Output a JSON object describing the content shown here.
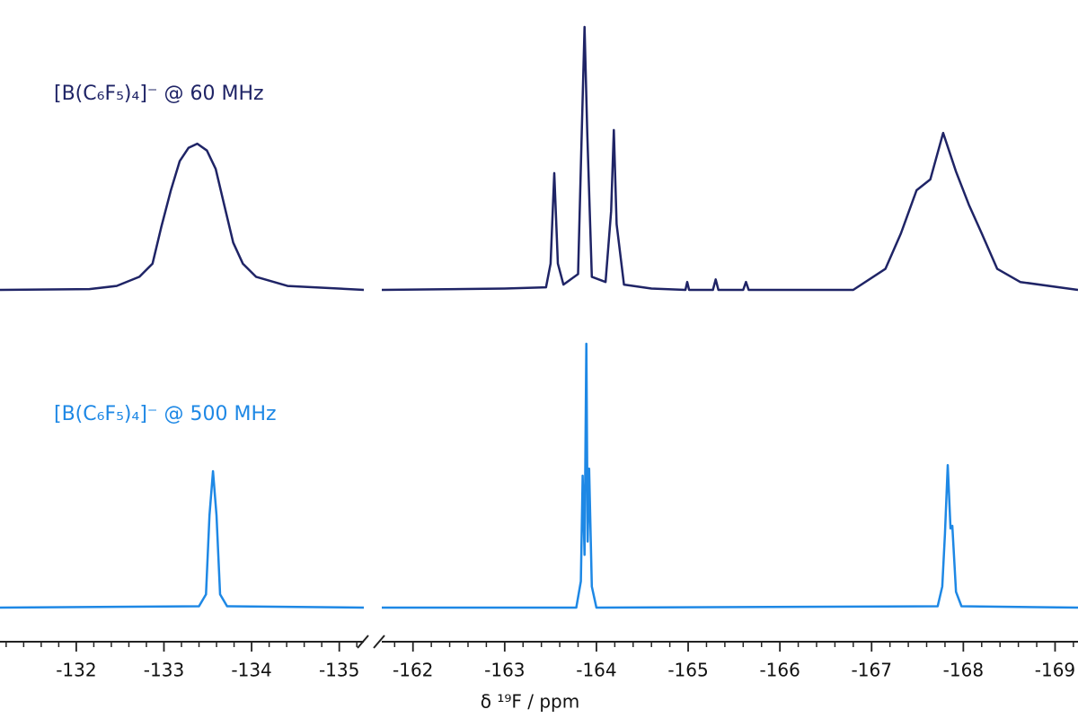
{
  "chart_data": {
    "type": "line",
    "xlabel": "δ ¹⁹F / ppm",
    "ylim": [
      0,
      100
    ],
    "x_segments": [
      {
        "xlim": [
          -131.13,
          -135.28
        ],
        "xticks": [
          -132,
          -133,
          -134,
          -135
        ]
      },
      {
        "xlim": [
          -161.66,
          -169.25
        ],
        "xticks": [
          -162,
          -163,
          -164,
          -165,
          -166,
          -167,
          -168,
          -169
        ]
      }
    ],
    "series": [
      {
        "name": "[B(C₆F₅)₄]⁻ @ 60 MHz",
        "color": "#1f2466",
        "segments": [
          {
            "x": [
              -131.13,
              -132.15,
              -132.46,
              -132.72,
              -132.87,
              -132.97,
              -133.08,
              -133.18,
              -133.28,
              -133.38,
              -133.49,
              -133.59,
              -133.69,
              -133.79,
              -133.9,
              -134.05,
              -134.41,
              -135.28
            ],
            "values": [
              0,
              0.3,
              1.5,
              5,
              10,
              24,
              38,
              49,
              54,
              55.6,
              53,
              46,
              32,
              18,
              10,
              5,
              1.5,
              0
            ]
          },
          {
            "x": [
              -161.66,
              -163.0,
              -163.45,
              -163.5,
              -163.54,
              -163.58,
              -163.64,
              -163.8,
              -163.84,
              -163.87,
              -163.9,
              -163.95,
              -164.1,
              -164.16,
              -164.19,
              -164.22,
              -164.3,
              -164.6,
              -164.97,
              -164.99,
              -165.01,
              -165.27,
              -165.3,
              -165.33,
              -165.6,
              -165.63,
              -165.66,
              -166.8,
              -167.15,
              -167.32,
              -167.49,
              -167.64,
              -167.78,
              -167.92,
              -168.06,
              -168.2,
              -168.37,
              -168.62,
              -169.25
            ],
            "values": [
              0,
              0.5,
              1,
              10,
              44.4,
              10,
              2,
              6,
              60,
              100,
              60,
              5,
              3,
              30,
              60.8,
              25,
              2,
              0.5,
              0,
              3,
              0,
              0,
              4,
              0,
              0,
              3,
              0,
              0,
              8,
              21.5,
              37.9,
              42,
              59.7,
              45,
              32.4,
              21.5,
              8,
              3,
              0
            ]
          }
        ]
      },
      {
        "name": "[B(C₆F₅)₄]⁻ @ 500 MHz",
        "color": "#1e88e5",
        "segments": [
          {
            "x": [
              -131.13,
              -133.4,
              -133.48,
              -133.52,
              -133.56,
              -133.6,
              -133.64,
              -133.72,
              -135.28
            ],
            "values": [
              0,
              0.5,
              5,
              35,
              51.7,
              35,
              5,
              0.5,
              0
            ]
          },
          {
            "x": [
              -161.66,
              -163.78,
              -163.83,
              -163.85,
              -163.87,
              -163.89,
              -163.905,
              -163.92,
              -163.95,
              -164.0,
              -167.72,
              -167.77,
              -167.8,
              -167.83,
              -167.86,
              -167.88,
              -167.92,
              -167.98,
              -169.25
            ],
            "values": [
              0,
              0,
              10,
              50,
              20,
              100,
              25,
              52.7,
              8,
              0,
              0.5,
              8,
              28,
              54,
              30,
              31,
              6,
              0.5,
              0
            ]
          }
        ]
      }
    ]
  }
}
